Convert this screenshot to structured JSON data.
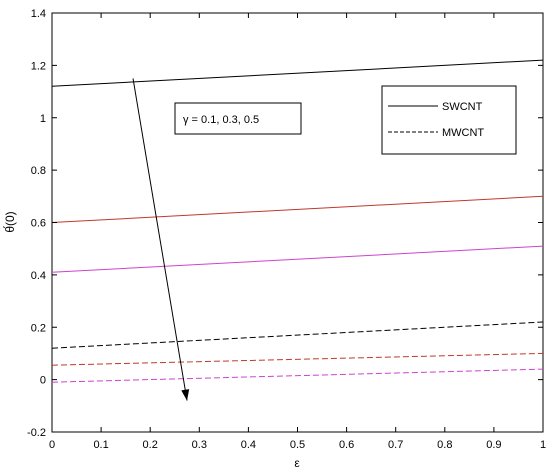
{
  "chart_data": {
    "type": "line",
    "xlabel": "ε",
    "ylabel": "θ́(0)",
    "xlim": [
      0,
      1
    ],
    "ylim": [
      -0.2,
      1.4
    ],
    "xticks": [
      "0",
      "0.1",
      "0.2",
      "0.3",
      "0.4",
      "0.5",
      "0.6",
      "0.7",
      "0.8",
      "0.9",
      "1"
    ],
    "yticks": [
      "-0.2",
      "0",
      "0.2",
      "0.4",
      "0.6",
      "0.8",
      "1",
      "1.2",
      "1.4"
    ],
    "grid": false,
    "legend": {
      "placement": "top-right",
      "entries": [
        {
          "label": "SWCNT",
          "style": "solid"
        },
        {
          "label": "MWCNT",
          "style": "dashed"
        }
      ]
    },
    "annotation": {
      "text": "γ = 0.1, 0.3, 0.5",
      "arrow_from": [
        0.165,
        1.15
      ],
      "arrow_to": [
        0.275,
        -0.08
      ]
    },
    "series": [
      {
        "style": "solid",
        "color": "#000000",
        "x": [
          0,
          1
        ],
        "y": [
          1.12,
          1.22
        ]
      },
      {
        "style": "solid",
        "color": "#c0392b",
        "x": [
          0,
          1
        ],
        "y": [
          0.6,
          0.7
        ]
      },
      {
        "style": "solid",
        "color": "#cc44cc",
        "x": [
          0,
          1
        ],
        "y": [
          0.41,
          0.51
        ]
      },
      {
        "style": "dashed",
        "color": "#000000",
        "x": [
          0,
          1
        ],
        "y": [
          0.12,
          0.22
        ]
      },
      {
        "style": "dashed",
        "color": "#c0392b",
        "x": [
          0,
          1
        ],
        "y": [
          0.055,
          0.1
        ]
      },
      {
        "style": "dashed",
        "color": "#cc44cc",
        "x": [
          0,
          1
        ],
        "y": [
          -0.01,
          0.04
        ]
      }
    ]
  }
}
